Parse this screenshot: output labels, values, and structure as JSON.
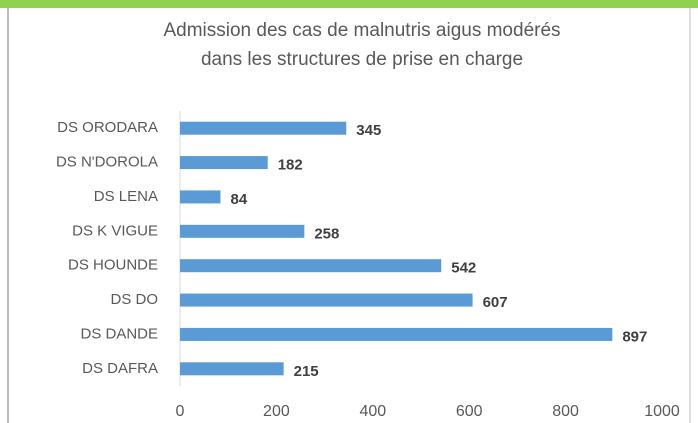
{
  "chart_data": {
    "type": "bar",
    "orientation": "horizontal",
    "title": [
      "Admission  des cas de malnutris aigus modérés",
      "dans les structures de prise en charge"
    ],
    "categories": [
      "DS ORODARA",
      "DS N'DOROLA",
      "DS LENA",
      "DS K VIGUE",
      "DS HOUNDE",
      "DS DO",
      "DS DANDE",
      "DS  DAFRA"
    ],
    "values": [
      345,
      182,
      84,
      258,
      542,
      607,
      897,
      215
    ],
    "color": "#5b9bd5",
    "xlim": [
      0,
      1000
    ],
    "xticks": [
      0,
      200,
      400,
      600,
      800,
      1000
    ],
    "grid": false
  }
}
